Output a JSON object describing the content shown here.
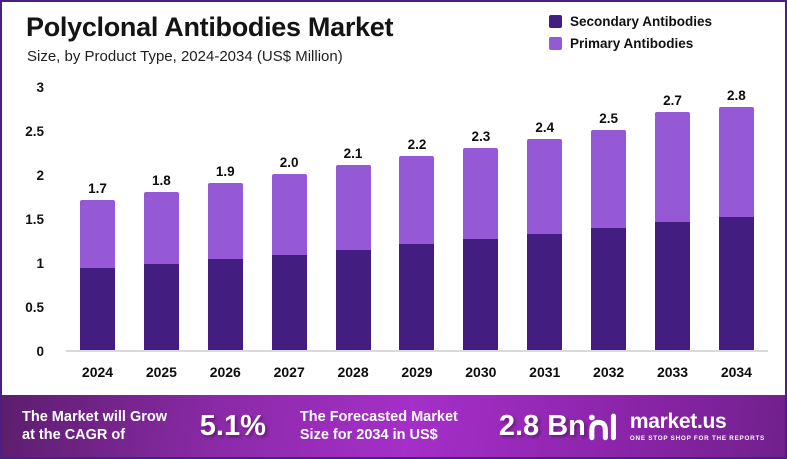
{
  "header": {
    "title": "Polyclonal Antibodies Market",
    "subtitle": "Size, by Product Type, 2024-2034 (US$ Million)"
  },
  "legend": [
    {
      "label": "Secondary Antibodies",
      "color": "#441d80"
    },
    {
      "label": "Primary Antibodies",
      "color": "#9659d6"
    }
  ],
  "chart_data": {
    "type": "bar",
    "stacked": true,
    "title": "Polyclonal Antibodies Market",
    "subtitle": "Size, by Product Type, 2024-2034 (US$ Million)",
    "categories": [
      "2024",
      "2025",
      "2026",
      "2027",
      "2028",
      "2029",
      "2030",
      "2031",
      "2032",
      "2033",
      "2034"
    ],
    "series": [
      {
        "name": "Secondary Antibodies",
        "color": "#441d80",
        "values": [
          0.93,
          0.98,
          1.03,
          1.08,
          1.14,
          1.2,
          1.26,
          1.32,
          1.39,
          1.46,
          1.53
        ]
      },
      {
        "name": "Primary Antibodies",
        "color": "#9659d6",
        "values": [
          0.77,
          0.82,
          0.87,
          0.92,
          0.96,
          1.0,
          1.04,
          1.08,
          1.11,
          1.24,
          1.27
        ]
      }
    ],
    "total_labels": [
      "1.7",
      "1.8",
      "1.9",
      "2.0",
      "2.1",
      "2.2",
      "2.3",
      "2.4",
      "2.5",
      "2.7",
      "2.8"
    ],
    "xlabel": "",
    "ylabel": "",
    "ylim": [
      0,
      3
    ],
    "yticks": [
      0,
      0.5,
      1,
      1.5,
      2,
      2.5,
      3
    ],
    "ytick_labels": [
      "0",
      "0.5",
      "1",
      "1.5",
      "2",
      "2.5",
      "3"
    ],
    "grid": false,
    "legend_position": "top-right"
  },
  "banner": {
    "cagr_label": "The Market will Grow at the CAGR of",
    "cagr_value": "5.1%",
    "forecast_label": "The Forecasted Market Size for 2034 in US$",
    "forecast_value": "2.8 Bn",
    "logo_text": "market.us",
    "logo_tagline": "ONE STOP SHOP FOR THE REPORTS"
  }
}
